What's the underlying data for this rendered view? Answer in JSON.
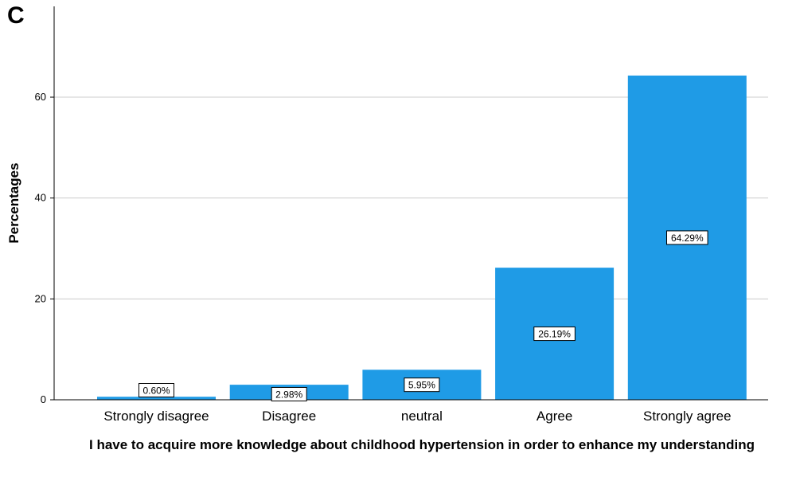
{
  "chart_data": {
    "type": "bar",
    "panel_label": "C",
    "categories": [
      "Strongly disagree",
      "Disagree",
      "neutral",
      "Agree",
      "Strongly agree"
    ],
    "values": [
      0.6,
      2.98,
      5.95,
      26.19,
      64.29
    ],
    "data_labels": [
      "0.60%",
      "2.98%",
      "5.95%",
      "26.19%",
      "64.29%"
    ],
    "xlabel": "I have to acquire more knowledge about childhood hypertension in order to enhance my understanding",
    "ylabel": "Percentages",
    "ylim": [
      0,
      70
    ],
    "yticks": [
      0,
      20,
      40,
      60
    ],
    "ytick_labels": [
      "0",
      "20",
      "40",
      "60"
    ],
    "grid": "horizontal",
    "bar_color": "#1f9be6",
    "grid_color": "#cccccc"
  }
}
